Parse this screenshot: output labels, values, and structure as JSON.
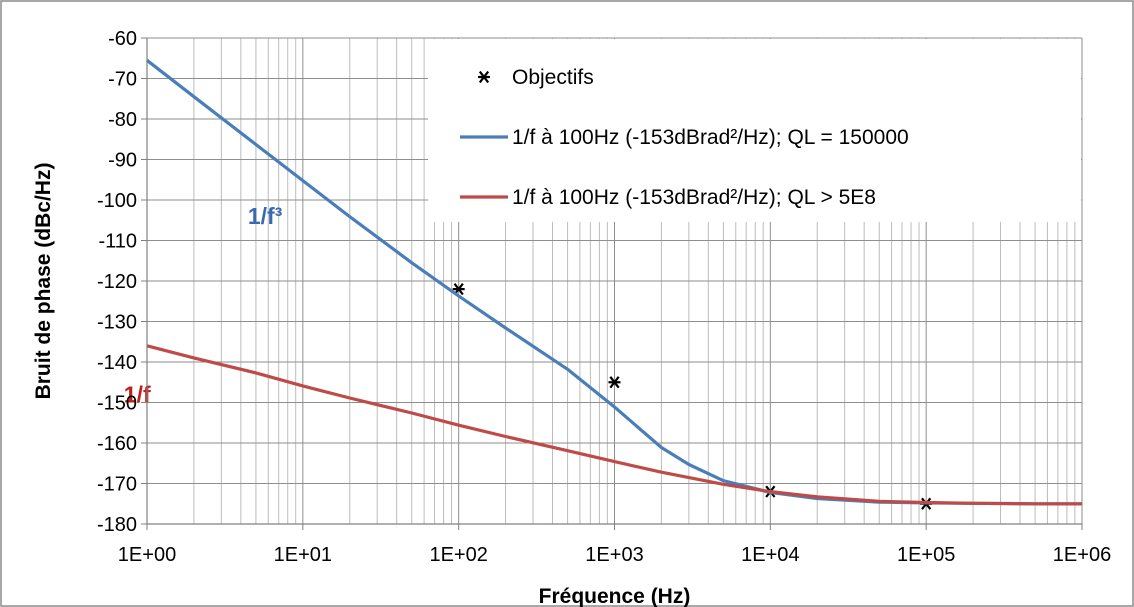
{
  "chart_data": {
    "type": "line",
    "title": "",
    "xlabel": "Fréquence (Hz)",
    "ylabel": "Bruit de phase (dBc/Hz)",
    "x_scale": "log",
    "xlim": [
      1,
      1000000
    ],
    "ylim": [
      -180,
      -60
    ],
    "x_ticks": [
      {
        "value": 1,
        "label": "1E+00"
      },
      {
        "value": 10,
        "label": "1E+01"
      },
      {
        "value": 100,
        "label": "1E+02"
      },
      {
        "value": 1000,
        "label": "1E+03"
      },
      {
        "value": 10000,
        "label": "1E+04"
      },
      {
        "value": 100000,
        "label": "1E+05"
      },
      {
        "value": 1000000,
        "label": "1E+06"
      }
    ],
    "y_ticks": [
      -60,
      -70,
      -80,
      -90,
      -100,
      -110,
      -120,
      -130,
      -140,
      -150,
      -160,
      -170,
      -180
    ],
    "grid": true,
    "legend_position": "top-right",
    "series": [
      {
        "name": "Objectifs",
        "kind": "marker",
        "marker": "asterisk",
        "color": "#000000",
        "x": [
          100,
          1000,
          10000,
          100000
        ],
        "y": [
          -122,
          -145,
          -172,
          -175
        ]
      },
      {
        "name": "1/f à 100Hz (-153dBrad²/Hz); QL = 150000",
        "kind": "line",
        "color": "#4a7ebb",
        "x": [
          1,
          2,
          5,
          10,
          20,
          50,
          100,
          200,
          500,
          1000,
          2000,
          3000,
          5000,
          10000,
          20000,
          50000,
          100000,
          200000,
          500000,
          1000000
        ],
        "y": [
          -65.5,
          -74.5,
          -86.3,
          -95.2,
          -104.1,
          -115.5,
          -123.7,
          -131.6,
          -141.8,
          -151.1,
          -161.1,
          -165.3,
          -169.3,
          -172.2,
          -173.7,
          -174.6,
          -174.8,
          -174.9,
          -175,
          -175
        ]
      },
      {
        "name": "1/f à 100Hz (-153dBrad²/Hz); QL > 5E8",
        "kind": "line",
        "color": "#be4b48",
        "x": [
          1,
          2,
          5,
          10,
          20,
          50,
          100,
          200,
          500,
          1000,
          2000,
          5000,
          10000,
          20000,
          50000,
          100000,
          200000,
          500000,
          1000000
        ],
        "y": [
          -136,
          -139,
          -142.7,
          -145.9,
          -148.9,
          -152.6,
          -155.6,
          -158.4,
          -161.9,
          -164.6,
          -167.2,
          -170.2,
          -172,
          -173.3,
          -174.4,
          -174.7,
          -174.9,
          -175,
          -175
        ]
      }
    ],
    "annotations": [
      {
        "text": "1/f³",
        "color": "#3a69b0",
        "x": 10,
        "y": -104
      },
      {
        "text": "1/f",
        "color": "#c0201d",
        "x": 1.6,
        "y": -148
      }
    ]
  }
}
